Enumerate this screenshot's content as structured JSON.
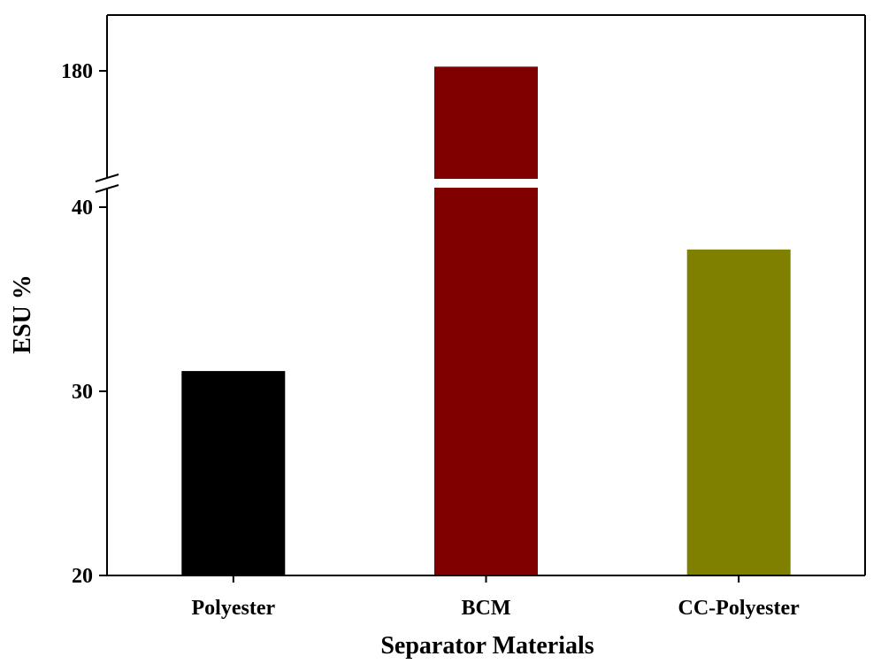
{
  "chart_data": {
    "type": "bar",
    "title": "",
    "xlabel": "Separator Materials",
    "ylabel": "ESU %",
    "categories": [
      "Polyester",
      "BCM",
      "CC-Polyester"
    ],
    "values": [
      31.1,
      184.5,
      37.7
    ],
    "colors": [
      "#000000",
      "#800000",
      "#808000"
    ],
    "ylim": [
      20,
      190
    ],
    "axis_break": {
      "lower_range": [
        20,
        41.5
      ],
      "upper_range": [
        163,
        190
      ]
    },
    "yticks": [
      {
        "value": 20,
        "label": "20"
      },
      {
        "value": 30,
        "label": "30"
      },
      {
        "value": 40,
        "label": "40"
      },
      {
        "value": 180,
        "label": "180"
      }
    ],
    "grid": false,
    "legend": "none"
  }
}
